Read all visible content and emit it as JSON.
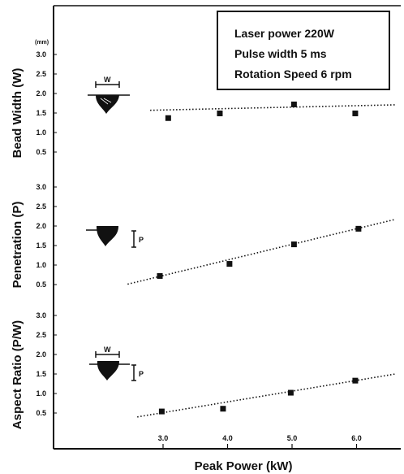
{
  "chart_data": {
    "type": "scatter",
    "x_label": "Peak Power (kW)",
    "x_ticks": [
      "3.0",
      "4.0",
      "5.0",
      "6.0"
    ],
    "xlim": [
      1.8,
      6.7
    ],
    "unit_label": "(mm)",
    "legend": [
      "Laser power 220W",
      "Pulse width 5 ms",
      "Rotation Speed 6 rpm"
    ],
    "shape_labels": {
      "width": "W",
      "penetration": "P"
    },
    "panels": [
      {
        "name": "bead-width",
        "ylabel": "Bead Width (W)",
        "y_ticks": [
          "0.5",
          "1.0",
          "1.5",
          "2.0",
          "2.5",
          "3.0"
        ],
        "ylim": [
          0.3,
          3.3
        ],
        "points": [
          {
            "x": 3.08,
            "y": 1.37
          },
          {
            "x": 3.88,
            "y": 1.49
          },
          {
            "x": 5.03,
            "y": 1.72
          },
          {
            "x": 5.98,
            "y": 1.49
          }
        ],
        "trend": {
          "x": [
            2.8,
            6.6
          ],
          "y": [
            1.57,
            1.71
          ]
        }
      },
      {
        "name": "penetration",
        "ylabel": "Penetration (P)",
        "y_ticks": [
          "0.5",
          "1.0",
          "1.5",
          "2.0",
          "2.5",
          "3.0"
        ],
        "ylim": [
          0.3,
          3.3
        ],
        "points": [
          {
            "x": 2.95,
            "y": 0.72
          },
          {
            "x": 4.03,
            "y": 1.03
          },
          {
            "x": 5.03,
            "y": 1.53
          },
          {
            "x": 6.03,
            "y": 1.93
          }
        ],
        "trend": {
          "x": [
            2.45,
            6.6
          ],
          "y": [
            0.51,
            2.17
          ]
        }
      },
      {
        "name": "aspect-ratio",
        "ylabel": "Aspect Ratio (P/W)",
        "y_ticks": [
          "0.5",
          "1.0",
          "1.5",
          "2.0",
          "2.5",
          "3.0"
        ],
        "ylim": [
          0.3,
          3.3
        ],
        "points": [
          {
            "x": 2.98,
            "y": 0.54
          },
          {
            "x": 3.93,
            "y": 0.61
          },
          {
            "x": 4.98,
            "y": 1.02
          },
          {
            "x": 5.98,
            "y": 1.33
          }
        ],
        "trend": {
          "x": [
            2.6,
            6.6
          ],
          "y": [
            0.4,
            1.5
          ]
        }
      }
    ]
  }
}
